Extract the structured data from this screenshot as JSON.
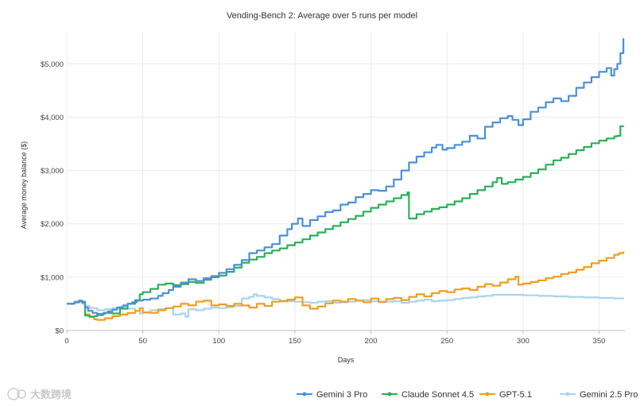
{
  "chart_data": {
    "type": "line",
    "title": "Vending-Bench 2: Average over 5 runs per model",
    "xlabel": "Days",
    "ylabel": "Average money balance ($)",
    "xlim": [
      0,
      367
    ],
    "ylim": [
      0,
      5600
    ],
    "x_ticks": [
      0,
      50,
      100,
      150,
      200,
      250,
      300,
      350
    ],
    "y_ticks": [
      {
        "value": 0,
        "label": "$0"
      },
      {
        "value": 1000,
        "label": "$1,000"
      },
      {
        "value": 2000,
        "label": "$2,000"
      },
      {
        "value": 3000,
        "label": "$3,000"
      },
      {
        "value": 4000,
        "label": "$4,000"
      },
      {
        "value": 5000,
        "label": "$5,000"
      }
    ],
    "grid": true,
    "legend_position": "bottom-right",
    "series": [
      {
        "name": "Gemini 3 Pro",
        "color": "#4a90d9",
        "points": [
          [
            0,
            500
          ],
          [
            5,
            530
          ],
          [
            8,
            560
          ],
          [
            10,
            540
          ],
          [
            12,
            430
          ],
          [
            14,
            370
          ],
          [
            17,
            330
          ],
          [
            20,
            290
          ],
          [
            24,
            330
          ],
          [
            27,
            360
          ],
          [
            30,
            390
          ],
          [
            33,
            430
          ],
          [
            37,
            470
          ],
          [
            40,
            500
          ],
          [
            43,
            530
          ],
          [
            46,
            560
          ],
          [
            50,
            580
          ],
          [
            55,
            600
          ],
          [
            60,
            650
          ],
          [
            63,
            700
          ],
          [
            67,
            760
          ],
          [
            70,
            820
          ],
          [
            75,
            900
          ],
          [
            80,
            960
          ],
          [
            85,
            930
          ],
          [
            90,
            980
          ],
          [
            95,
            1020
          ],
          [
            100,
            1080
          ],
          [
            105,
            1150
          ],
          [
            110,
            1230
          ],
          [
            115,
            1320
          ],
          [
            120,
            1450
          ],
          [
            125,
            1500
          ],
          [
            130,
            1560
          ],
          [
            135,
            1620
          ],
          [
            140,
            1780
          ],
          [
            145,
            1900
          ],
          [
            148,
            2000
          ],
          [
            152,
            2100
          ],
          [
            155,
            1960
          ],
          [
            160,
            2070
          ],
          [
            165,
            2140
          ],
          [
            170,
            2220
          ],
          [
            175,
            2250
          ],
          [
            180,
            2360
          ],
          [
            185,
            2400
          ],
          [
            190,
            2500
          ],
          [
            195,
            2560
          ],
          [
            200,
            2630
          ],
          [
            205,
            2620
          ],
          [
            210,
            2700
          ],
          [
            215,
            2830
          ],
          [
            220,
            3000
          ],
          [
            225,
            3150
          ],
          [
            230,
            3260
          ],
          [
            235,
            3340
          ],
          [
            240,
            3430
          ],
          [
            243,
            3480
          ],
          [
            247,
            3390
          ],
          [
            250,
            3420
          ],
          [
            255,
            3480
          ],
          [
            260,
            3540
          ],
          [
            265,
            3650
          ],
          [
            270,
            3600
          ],
          [
            275,
            3820
          ],
          [
            280,
            3900
          ],
          [
            285,
            3980
          ],
          [
            290,
            4020
          ],
          [
            293,
            3950
          ],
          [
            297,
            3850
          ],
          [
            300,
            3960
          ],
          [
            305,
            4100
          ],
          [
            310,
            4180
          ],
          [
            315,
            4280
          ],
          [
            320,
            4350
          ],
          [
            325,
            4300
          ],
          [
            330,
            4400
          ],
          [
            335,
            4550
          ],
          [
            340,
            4650
          ],
          [
            345,
            4750
          ],
          [
            350,
            4850
          ],
          [
            355,
            4920
          ],
          [
            358,
            4780
          ],
          [
            360,
            4900
          ],
          [
            362,
            5000
          ],
          [
            364,
            5200
          ],
          [
            366,
            5480
          ]
        ]
      },
      {
        "name": "Claude Sonnet 4.5",
        "color": "#2ab058",
        "points": [
          [
            0,
            500
          ],
          [
            5,
            530
          ],
          [
            8,
            550
          ],
          [
            10,
            530
          ],
          [
            12,
            280
          ],
          [
            15,
            260
          ],
          [
            18,
            270
          ],
          [
            20,
            310
          ],
          [
            25,
            330
          ],
          [
            30,
            320
          ],
          [
            35,
            410
          ],
          [
            40,
            500
          ],
          [
            45,
            570
          ],
          [
            48,
            680
          ],
          [
            50,
            720
          ],
          [
            55,
            780
          ],
          [
            60,
            860
          ],
          [
            65,
            880
          ],
          [
            70,
            850
          ],
          [
            75,
            870
          ],
          [
            80,
            910
          ],
          [
            85,
            890
          ],
          [
            90,
            950
          ],
          [
            95,
            1000
          ],
          [
            100,
            1030
          ],
          [
            105,
            1100
          ],
          [
            110,
            1180
          ],
          [
            115,
            1270
          ],
          [
            120,
            1330
          ],
          [
            125,
            1380
          ],
          [
            130,
            1450
          ],
          [
            135,
            1500
          ],
          [
            140,
            1540
          ],
          [
            145,
            1600
          ],
          [
            150,
            1650
          ],
          [
            155,
            1710
          ],
          [
            160,
            1780
          ],
          [
            165,
            1840
          ],
          [
            170,
            1900
          ],
          [
            175,
            1960
          ],
          [
            180,
            2030
          ],
          [
            185,
            2090
          ],
          [
            190,
            2150
          ],
          [
            195,
            2230
          ],
          [
            200,
            2300
          ],
          [
            205,
            2360
          ],
          [
            210,
            2420
          ],
          [
            215,
            2480
          ],
          [
            220,
            2540
          ],
          [
            224,
            2590
          ],
          [
            225,
            2100
          ],
          [
            230,
            2180
          ],
          [
            235,
            2230
          ],
          [
            240,
            2280
          ],
          [
            245,
            2310
          ],
          [
            250,
            2360
          ],
          [
            255,
            2420
          ],
          [
            260,
            2480
          ],
          [
            265,
            2560
          ],
          [
            270,
            2630
          ],
          [
            275,
            2700
          ],
          [
            280,
            2780
          ],
          [
            283,
            2860
          ],
          [
            286,
            2750
          ],
          [
            290,
            2780
          ],
          [
            295,
            2830
          ],
          [
            300,
            2880
          ],
          [
            305,
            2950
          ],
          [
            310,
            3020
          ],
          [
            315,
            3110
          ],
          [
            320,
            3190
          ],
          [
            325,
            3240
          ],
          [
            330,
            3310
          ],
          [
            335,
            3380
          ],
          [
            340,
            3440
          ],
          [
            345,
            3510
          ],
          [
            350,
            3560
          ],
          [
            355,
            3600
          ],
          [
            360,
            3640
          ],
          [
            362,
            3650
          ],
          [
            364,
            3830
          ],
          [
            366,
            3840
          ]
        ]
      },
      {
        "name": "GPT-5.1",
        "color": "#f29d1c",
        "points": [
          [
            0,
            500
          ],
          [
            5,
            540
          ],
          [
            8,
            560
          ],
          [
            10,
            520
          ],
          [
            12,
            300
          ],
          [
            15,
            250
          ],
          [
            18,
            210
          ],
          [
            20,
            200
          ],
          [
            25,
            230
          ],
          [
            30,
            270
          ],
          [
            35,
            300
          ],
          [
            40,
            330
          ],
          [
            45,
            370
          ],
          [
            48,
            420
          ],
          [
            50,
            340
          ],
          [
            55,
            330
          ],
          [
            60,
            380
          ],
          [
            65,
            420
          ],
          [
            70,
            450
          ],
          [
            75,
            500
          ],
          [
            80,
            470
          ],
          [
            85,
            540
          ],
          [
            90,
            560
          ],
          [
            95,
            470
          ],
          [
            100,
            490
          ],
          [
            105,
            460
          ],
          [
            110,
            500
          ],
          [
            115,
            470
          ],
          [
            120,
            430
          ],
          [
            125,
            500
          ],
          [
            130,
            460
          ],
          [
            135,
            540
          ],
          [
            140,
            550
          ],
          [
            145,
            580
          ],
          [
            150,
            620
          ],
          [
            155,
            470
          ],
          [
            160,
            410
          ],
          [
            165,
            450
          ],
          [
            170,
            510
          ],
          [
            175,
            560
          ],
          [
            180,
            540
          ],
          [
            185,
            590
          ],
          [
            190,
            560
          ],
          [
            195,
            530
          ],
          [
            200,
            600
          ],
          [
            205,
            540
          ],
          [
            210,
            590
          ],
          [
            215,
            610
          ],
          [
            220,
            570
          ],
          [
            225,
            630
          ],
          [
            230,
            680
          ],
          [
            235,
            640
          ],
          [
            240,
            700
          ],
          [
            245,
            740
          ],
          [
            250,
            720
          ],
          [
            255,
            770
          ],
          [
            260,
            790
          ],
          [
            265,
            760
          ],
          [
            270,
            820
          ],
          [
            275,
            870
          ],
          [
            280,
            840
          ],
          [
            285,
            900
          ],
          [
            290,
            960
          ],
          [
            295,
            1010
          ],
          [
            297,
            860
          ],
          [
            300,
            880
          ],
          [
            305,
            910
          ],
          [
            310,
            940
          ],
          [
            315,
            980
          ],
          [
            320,
            1010
          ],
          [
            325,
            1060
          ],
          [
            330,
            1090
          ],
          [
            335,
            1140
          ],
          [
            340,
            1190
          ],
          [
            345,
            1260
          ],
          [
            350,
            1310
          ],
          [
            355,
            1360
          ],
          [
            360,
            1420
          ],
          [
            363,
            1450
          ],
          [
            366,
            1480
          ]
        ]
      },
      {
        "name": "Gemini 2.5 Pro",
        "color": "#a8d4ee",
        "points": [
          [
            0,
            500
          ],
          [
            5,
            520
          ],
          [
            8,
            540
          ],
          [
            10,
            500
          ],
          [
            12,
            460
          ],
          [
            15,
            420
          ],
          [
            20,
            380
          ],
          [
            25,
            400
          ],
          [
            30,
            420
          ],
          [
            35,
            450
          ],
          [
            40,
            410
          ],
          [
            45,
            370
          ],
          [
            48,
            320
          ],
          [
            50,
            340
          ],
          [
            55,
            380
          ],
          [
            60,
            400
          ],
          [
            65,
            420
          ],
          [
            70,
            300
          ],
          [
            75,
            320
          ],
          [
            78,
            260
          ],
          [
            80,
            400
          ],
          [
            85,
            380
          ],
          [
            90,
            410
          ],
          [
            95,
            430
          ],
          [
            100,
            420
          ],
          [
            105,
            440
          ],
          [
            110,
            460
          ],
          [
            115,
            600
          ],
          [
            120,
            630
          ],
          [
            123,
            680
          ],
          [
            125,
            650
          ],
          [
            130,
            620
          ],
          [
            135,
            590
          ],
          [
            140,
            560
          ],
          [
            145,
            550
          ],
          [
            150,
            540
          ],
          [
            155,
            530
          ],
          [
            160,
            520
          ],
          [
            165,
            540
          ],
          [
            170,
            550
          ],
          [
            175,
            520
          ],
          [
            180,
            530
          ],
          [
            185,
            540
          ],
          [
            190,
            560
          ],
          [
            195,
            570
          ],
          [
            200,
            550
          ],
          [
            205,
            530
          ],
          [
            210,
            540
          ],
          [
            215,
            550
          ],
          [
            220,
            520
          ],
          [
            225,
            540
          ],
          [
            230,
            560
          ],
          [
            235,
            580
          ],
          [
            240,
            550
          ],
          [
            245,
            560
          ],
          [
            250,
            570
          ],
          [
            255,
            590
          ],
          [
            260,
            610
          ],
          [
            265,
            620
          ],
          [
            270,
            640
          ],
          [
            275,
            650
          ],
          [
            280,
            670
          ],
          [
            290,
            670
          ],
          [
            300,
            660
          ],
          [
            310,
            650
          ],
          [
            320,
            640
          ],
          [
            330,
            630
          ],
          [
            340,
            620
          ],
          [
            350,
            610
          ],
          [
            360,
            600
          ],
          [
            366,
            590
          ]
        ]
      }
    ]
  },
  "watermark": "大数跨境"
}
